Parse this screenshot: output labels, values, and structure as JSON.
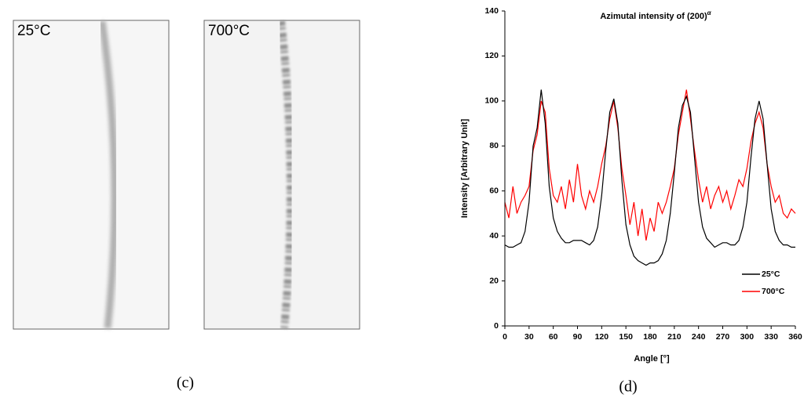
{
  "figure": {
    "images": [
      "25°C",
      "700°C"
    ],
    "panel_labels": [
      "(c)",
      "(d)"
    ]
  },
  "chart_data": {
    "type": "line",
    "title": "Azimutal intensity of (200)",
    "title_superscript": "α",
    "x_label": "Angle  [°]",
    "y_label": "Intensity  [Arbitrary Unit]",
    "xlim": [
      0,
      360
    ],
    "xticks": [
      0,
      30,
      60,
      90,
      120,
      150,
      180,
      210,
      240,
      270,
      300,
      330,
      360
    ],
    "ylim": [
      0,
      140
    ],
    "yticks": [
      0,
      20,
      40,
      60,
      80,
      100,
      120,
      140
    ],
    "grid": false,
    "legend": "lower right",
    "x": [
      0,
      5,
      10,
      15,
      20,
      25,
      30,
      35,
      40,
      45,
      50,
      55,
      60,
      65,
      70,
      75,
      80,
      85,
      90,
      95,
      100,
      105,
      110,
      115,
      120,
      125,
      130,
      135,
      140,
      145,
      150,
      155,
      160,
      165,
      170,
      175,
      180,
      185,
      190,
      195,
      200,
      205,
      210,
      215,
      220,
      225,
      230,
      235,
      240,
      245,
      250,
      255,
      260,
      265,
      270,
      275,
      280,
      285,
      290,
      295,
      300,
      305,
      310,
      315,
      320,
      325,
      330,
      335,
      340,
      345,
      350,
      355,
      360
    ],
    "series": [
      {
        "name": "25°C",
        "color": "#000000",
        "values": [
          36,
          35,
          35,
          36,
          37,
          42,
          55,
          80,
          88,
          105,
          90,
          62,
          48,
          42,
          39,
          37,
          37,
          38,
          38,
          38,
          37,
          36,
          38,
          44,
          58,
          78,
          95,
          101,
          90,
          65,
          45,
          36,
          31,
          29,
          28,
          27,
          28,
          28,
          29,
          32,
          38,
          50,
          68,
          88,
          98,
          102,
          95,
          75,
          55,
          44,
          39,
          37,
          35,
          36,
          37,
          37,
          36,
          36,
          38,
          44,
          55,
          75,
          92,
          100,
          92,
          72,
          52,
          42,
          38,
          36,
          36,
          35,
          35
        ]
      },
      {
        "name": "700°C",
        "color": "#ff0000",
        "values": [
          55,
          48,
          62,
          50,
          55,
          58,
          62,
          78,
          85,
          100,
          95,
          70,
          58,
          55,
          62,
          52,
          65,
          55,
          72,
          58,
          52,
          60,
          55,
          62,
          72,
          80,
          92,
          100,
          88,
          70,
          58,
          45,
          55,
          40,
          52,
          38,
          48,
          42,
          55,
          50,
          55,
          62,
          70,
          85,
          95,
          105,
          92,
          78,
          65,
          55,
          62,
          52,
          58,
          62,
          55,
          60,
          52,
          58,
          65,
          62,
          70,
          82,
          90,
          95,
          88,
          72,
          62,
          55,
          58,
          50,
          48,
          52,
          50
        ]
      }
    ]
  }
}
